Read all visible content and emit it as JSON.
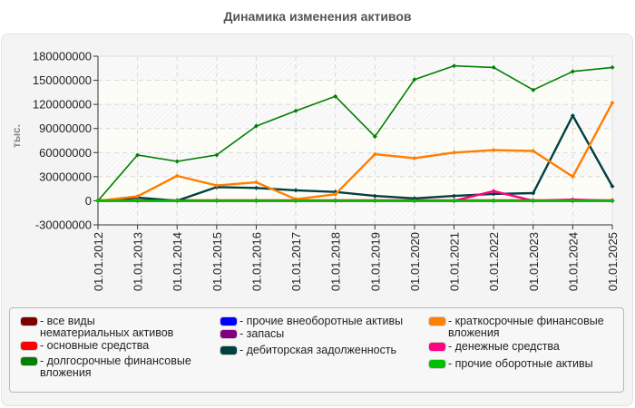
{
  "title": "Динамика изменения активов",
  "chart_data": {
    "type": "line",
    "title": "Динамика изменения активов",
    "xlabel": "",
    "ylabel": "тыс.",
    "ylim": [
      -30000000,
      180000000
    ],
    "yticks": [
      -30000000,
      0,
      30000000,
      60000000,
      90000000,
      120000000,
      150000000,
      180000000
    ],
    "ytick_labels": [
      "-30000000",
      "0",
      "30000000",
      "60000000",
      "90000000",
      "120000000",
      "150000000",
      "180000000"
    ],
    "grid": true,
    "legend_position": "bottom",
    "categories": [
      "01.01.2012",
      "01.01.2013",
      "01.01.2014",
      "01.01.2015",
      "01.01.2016",
      "01.01.2017",
      "01.01.2018",
      "01.01.2019",
      "01.01.2020",
      "01.01.2021",
      "01.01.2022",
      "01.01.2023",
      "01.01.2024",
      "01.01.2025"
    ],
    "series": [
      {
        "name": "все виды нематериальных активов",
        "color": "#7a0000",
        "values": [
          0,
          0,
          0,
          0,
          0,
          0,
          0,
          0,
          0,
          0,
          0,
          0,
          0,
          0
        ]
      },
      {
        "name": "основные средства",
        "color": "#ff0000",
        "values": [
          500000,
          500000,
          500000,
          500000,
          500000,
          500000,
          500000,
          500000,
          500000,
          500000,
          500000,
          500000,
          500000,
          500000
        ]
      },
      {
        "name": "долгосрочные финансовые вложения",
        "color": "#007f00",
        "values": [
          0,
          57000000,
          49000000,
          57000000,
          93000000,
          112000000,
          130000000,
          80000000,
          151000000,
          168000000,
          166000000,
          138000000,
          161000000,
          166000000
        ]
      },
      {
        "name": "прочие внеоборотные активы",
        "color": "#0000ff",
        "values": [
          0,
          0,
          0,
          0,
          0,
          0,
          0,
          0,
          0,
          0,
          0,
          0,
          0,
          0
        ]
      },
      {
        "name": "запасы",
        "color": "#800080",
        "values": [
          0,
          0,
          0,
          0,
          0,
          0,
          0,
          0,
          0,
          0,
          0,
          0,
          0,
          0
        ]
      },
      {
        "name": "дебиторская задолженность",
        "color": "#004040",
        "values": [
          0,
          4000000,
          0,
          17000000,
          16000000,
          13000000,
          11000000,
          6000000,
          3000000,
          6000000,
          8500000,
          9500000,
          106000000,
          18000000
        ]
      },
      {
        "name": "краткосрочные финансовые вложения",
        "color": "#ff7f00",
        "values": [
          0,
          5500000,
          31000000,
          19000000,
          23000000,
          2000000,
          8000000,
          58000000,
          53000000,
          60000000,
          63000000,
          62000000,
          30000000,
          122000000
        ]
      },
      {
        "name": "денежные средства",
        "color": "#ff0080",
        "values": [
          0,
          0,
          0,
          0,
          0,
          0,
          0,
          0,
          0,
          0,
          12000000,
          0,
          1500000,
          0
        ]
      },
      {
        "name": "прочие оборотные активы",
        "color": "#00c000",
        "values": [
          0,
          0,
          0,
          0,
          0,
          0,
          0,
          0,
          0,
          0,
          0,
          0,
          0,
          0
        ]
      }
    ]
  },
  "legend": {
    "items": [
      {
        "label": "- все виды нематериальных активов",
        "color": "#7a0000"
      },
      {
        "label": "- основные средства",
        "color": "#ff0000"
      },
      {
        "label": "- долгосрочные финансовые вложения",
        "color": "#007f00"
      },
      {
        "label": "- прочие внеоборотные активы",
        "color": "#0000ff"
      },
      {
        "label": "- запасы",
        "color": "#800080"
      },
      {
        "label": "- дебиторская задолженность",
        "color": "#004040"
      },
      {
        "label": "- краткосрочные финансовые вложения",
        "color": "#ff7f00"
      },
      {
        "label": "- денежные средства",
        "color": "#ff0080"
      },
      {
        "label": "- прочие оборотные активы",
        "color": "#00c000"
      }
    ]
  }
}
